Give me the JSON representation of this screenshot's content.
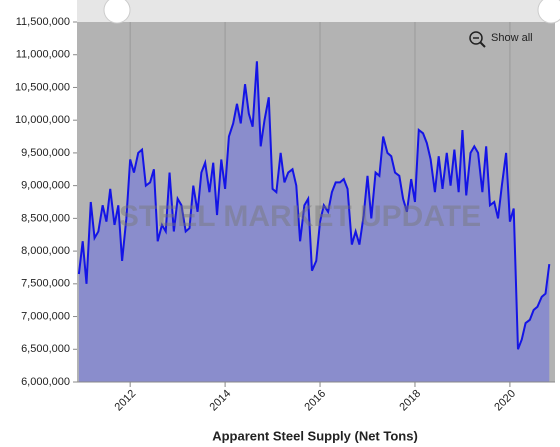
{
  "chart_data": {
    "type": "area",
    "title": "Apparent Steel Supply (Net Tons)",
    "watermark": "STEEL MARKET UPDATE",
    "button": "Show all",
    "x": [
      2010.92,
      2011.0,
      2011.08,
      2011.17,
      2011.25,
      2011.33,
      2011.42,
      2011.5,
      2011.58,
      2011.67,
      2011.75,
      2011.83,
      2011.92,
      2012.0,
      2012.08,
      2012.17,
      2012.25,
      2012.33,
      2012.42,
      2012.5,
      2012.58,
      2012.67,
      2012.75,
      2012.83,
      2012.92,
      2013.0,
      2013.08,
      2013.17,
      2013.25,
      2013.33,
      2013.42,
      2013.5,
      2013.58,
      2013.67,
      2013.75,
      2013.83,
      2013.92,
      2014.0,
      2014.08,
      2014.17,
      2014.25,
      2014.33,
      2014.42,
      2014.5,
      2014.58,
      2014.67,
      2014.75,
      2014.83,
      2014.92,
      2015.0,
      2015.08,
      2015.17,
      2015.25,
      2015.33,
      2015.42,
      2015.5,
      2015.58,
      2015.67,
      2015.75,
      2015.83,
      2015.92,
      2016.0,
      2016.08,
      2016.17,
      2016.25,
      2016.33,
      2016.42,
      2016.5,
      2016.58,
      2016.67,
      2016.75,
      2016.83,
      2016.92,
      2017.0,
      2017.08,
      2017.17,
      2017.25,
      2017.33,
      2017.42,
      2017.5,
      2017.58,
      2017.67,
      2017.75,
      2017.83,
      2017.92,
      2018.0,
      2018.08,
      2018.17,
      2018.25,
      2018.33,
      2018.42,
      2018.5,
      2018.58,
      2018.67,
      2018.75,
      2018.83,
      2018.92,
      2019.0,
      2019.08,
      2019.17,
      2019.25,
      2019.33,
      2019.42,
      2019.5,
      2019.58,
      2019.67,
      2019.75,
      2019.83,
      2019.92,
      2020.0,
      2020.08,
      2020.17,
      2020.25,
      2020.33,
      2020.42,
      2020.5,
      2020.58,
      2020.67,
      2020.75,
      2020.83
    ],
    "series": [
      {
        "color": "#1414e6",
        "fill": "#8a8dcc",
        "values": [
          7650000,
          8150000,
          7500000,
          8750000,
          8200000,
          8300000,
          8700000,
          8450000,
          8950000,
          8400000,
          8700000,
          7850000,
          8500000,
          9400000,
          9200000,
          9500000,
          9550000,
          9000000,
          9050000,
          9250000,
          8150000,
          8400000,
          8300000,
          9200000,
          8300000,
          8800000,
          8700000,
          8300000,
          8350000,
          9000000,
          8600000,
          9200000,
          9350000,
          8900000,
          9350000,
          8550000,
          9400000,
          8950000,
          9750000,
          9950000,
          10250000,
          9950000,
          10550000,
          10100000,
          9900000,
          10900000,
          9600000,
          10000000,
          10350000,
          8950000,
          8900000,
          9500000,
          9050000,
          9200000,
          9250000,
          9000000,
          8150000,
          8700000,
          8800000,
          7700000,
          7850000,
          8450000,
          8700000,
          8600000,
          8900000,
          9050000,
          9050000,
          9100000,
          8950000,
          8100000,
          8300000,
          8100000,
          8550000,
          9150000,
          8500000,
          9200000,
          9150000,
          9750000,
          9500000,
          9450000,
          9200000,
          9150000,
          8800000,
          8600000,
          9100000,
          8750000,
          9850000,
          9800000,
          9650000,
          9400000,
          8900000,
          9450000,
          8950000,
          9500000,
          9000000,
          9550000,
          8900000,
          9850000,
          8850000,
          9500000,
          9600000,
          9500000,
          8900000,
          9600000,
          8700000,
          8750000,
          8500000,
          9000000,
          9500000,
          8450000,
          8650000,
          6500000,
          6650000,
          6900000,
          6950000,
          7100000,
          7150000,
          7300000,
          7350000,
          7800000
        ]
      }
    ],
    "xlim": [
      2010.88,
      2020.95
    ],
    "xticks": [
      2012,
      2014,
      2016,
      2018,
      2020
    ],
    "ylim": [
      6000000,
      11500000
    ],
    "yticks": [
      {
        "value": 6000000,
        "label": "6,000,000"
      },
      {
        "value": 6500000,
        "label": "6,500,000"
      },
      {
        "value": 7000000,
        "label": "7,000,000"
      },
      {
        "value": 7500000,
        "label": "7,500,000"
      },
      {
        "value": 8000000,
        "label": "8,000,000"
      },
      {
        "value": 8500000,
        "label": "8,500,000"
      },
      {
        "value": 9000000,
        "label": "9,000,000"
      },
      {
        "value": 9500000,
        "label": "9,500,000"
      },
      {
        "value": 10000000,
        "label": "10,000,000"
      },
      {
        "value": 10500000,
        "label": "10,500,000"
      },
      {
        "value": 11000000,
        "label": "11,000,000"
      },
      {
        "value": 11500000,
        "label": "11,500,000"
      }
    ],
    "grid": "x",
    "plot_background": "#b3b3b3"
  }
}
